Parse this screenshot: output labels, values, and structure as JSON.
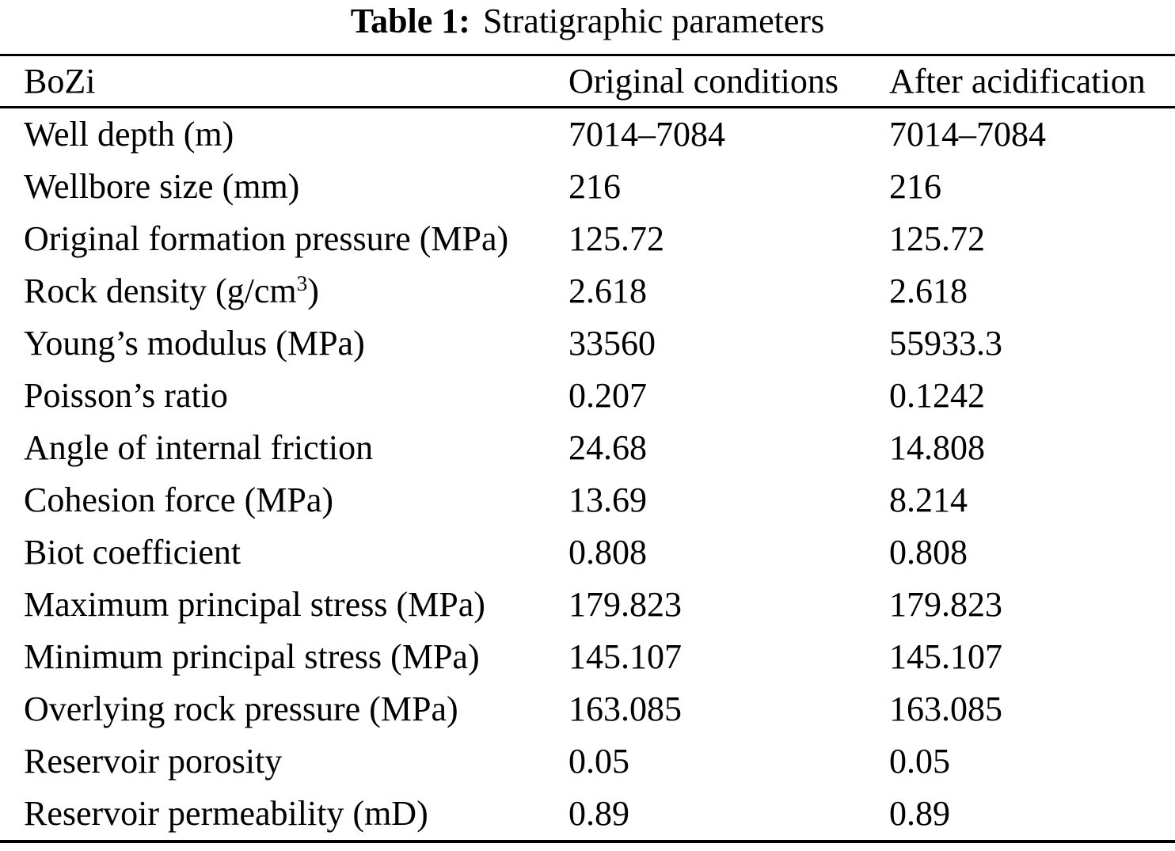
{
  "caption": {
    "label": "Table 1:",
    "text": "Stratigraphic parameters"
  },
  "table": {
    "columns": [
      "BoZi",
      "Original conditions",
      "After acidification"
    ],
    "rows": [
      {
        "param": "Well depth (m)",
        "original": "7014–7084",
        "acidified": "7014–7084"
      },
      {
        "param": "Wellbore size (mm)",
        "original": "216",
        "acidified": "216"
      },
      {
        "param": "Original formation pressure (MPa)",
        "original": "125.72",
        "acidified": "125.72"
      },
      {
        "param": "Rock density (g/cm",
        "param_sup": "3",
        "param_tail": ")",
        "original": "2.618",
        "acidified": "2.618"
      },
      {
        "param": "Young’s modulus (MPa)",
        "original": "33560",
        "acidified": "55933.3"
      },
      {
        "param": "Poisson’s ratio",
        "original": "0.207",
        "acidified": "0.1242"
      },
      {
        "param": "Angle of internal friction",
        "original": "24.68",
        "acidified": "14.808"
      },
      {
        "param": "Cohesion force (MPa)",
        "original": "13.69",
        "acidified": "8.214"
      },
      {
        "param": "Biot coefficient",
        "original": "0.808",
        "acidified": "0.808"
      },
      {
        "param": "Maximum principal stress (MPa)",
        "original": "179.823",
        "acidified": "179.823"
      },
      {
        "param": "Minimum principal stress (MPa)",
        "original": "145.107",
        "acidified": "145.107"
      },
      {
        "param": "Overlying rock pressure (MPa)",
        "original": "163.085",
        "acidified": "163.085"
      },
      {
        "param": "Reservoir porosity",
        "original": "0.05",
        "acidified": "0.05"
      },
      {
        "param": "Reservoir permeability (mD)",
        "original": "0.89",
        "acidified": "0.89"
      }
    ]
  },
  "colors": {
    "text": "#000000",
    "background": "#ffffff",
    "rule": "#000000"
  }
}
